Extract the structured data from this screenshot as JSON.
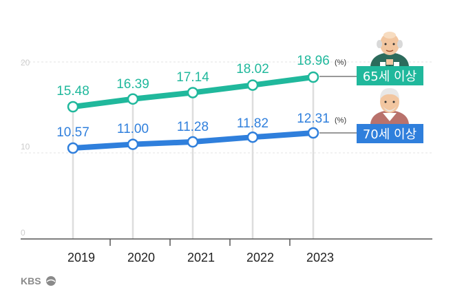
{
  "chart_data": {
    "type": "line",
    "categories": [
      "2019",
      "2020",
      "2021",
      "2022",
      "2023"
    ],
    "ylim": [
      0,
      20
    ],
    "yticks": [
      "0",
      "10",
      "20"
    ],
    "unit_label": "(%)",
    "series": [
      {
        "name": "65세 이상",
        "values": [
          "15.48",
          "16.39",
          "17.14",
          "18.02",
          "18.96"
        ],
        "color": "#20b89c"
      },
      {
        "name": "70세 이상",
        "values": [
          "10.57",
          "11.00",
          "11.28",
          "11.82",
          "12.31"
        ],
        "color": "#2f7fdc"
      }
    ]
  },
  "logo": {
    "text": "KBS"
  }
}
